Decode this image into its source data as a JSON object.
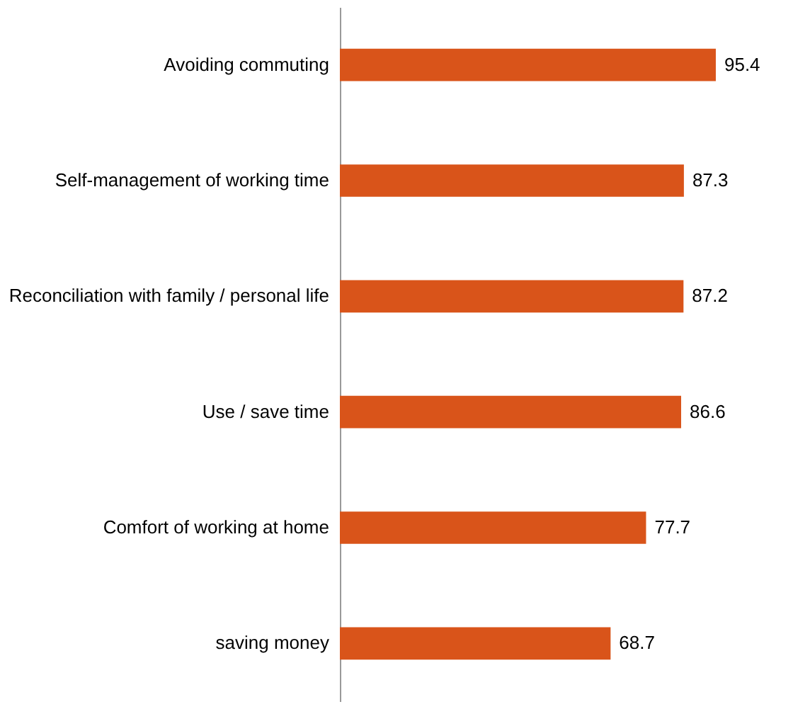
{
  "chart_data": {
    "type": "bar",
    "orientation": "horizontal",
    "categories": [
      "Avoiding commuting",
      "Self-management of working time",
      "Reconciliation with family / personal life",
      "Use / save time",
      "Comfort of working at home",
      "saving money"
    ],
    "values": [
      95.4,
      87.3,
      87.2,
      86.6,
      77.7,
      68.7
    ],
    "color": "#d9541a",
    "data_labels": true
  }
}
